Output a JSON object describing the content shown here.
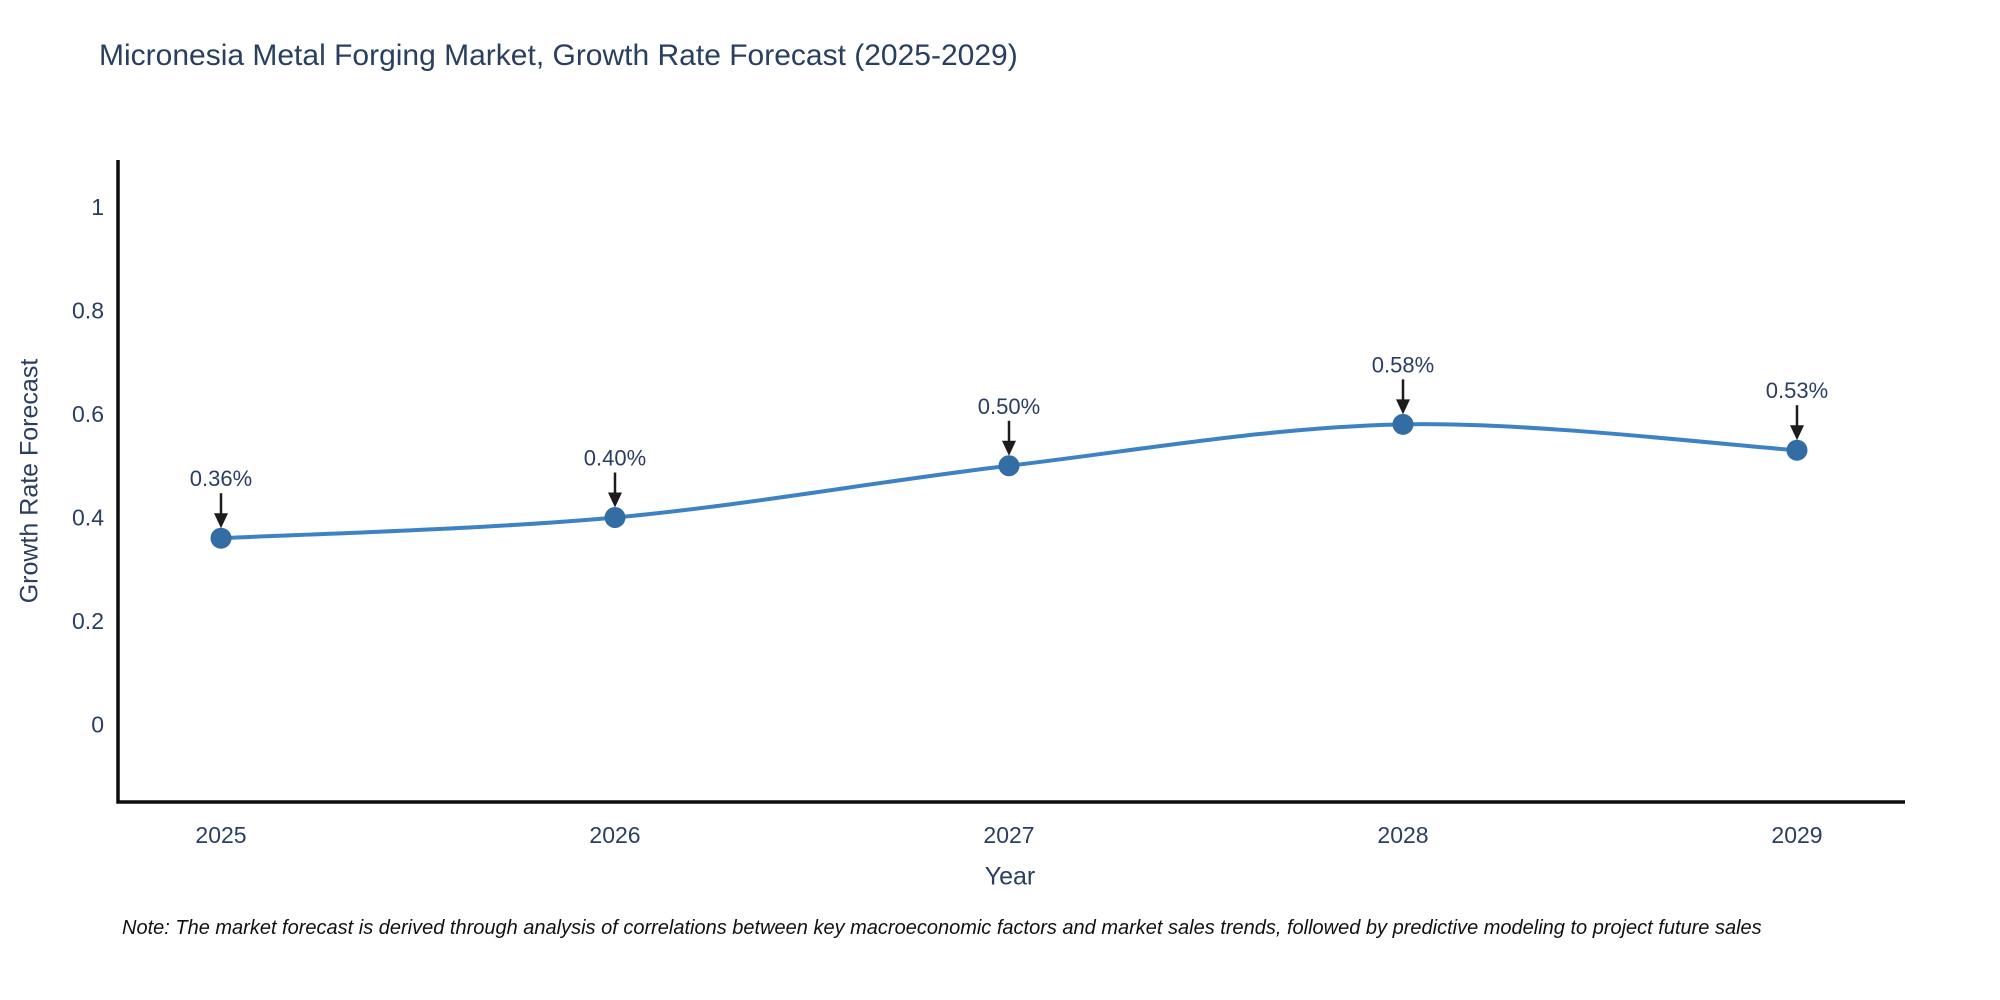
{
  "chart_data": {
    "type": "line",
    "title": "Micronesia Metal Forging Market, Growth Rate Forecast (2025-2029)",
    "xlabel": "Year",
    "ylabel": "Growth Rate Forecast",
    "categories": [
      "2025",
      "2026",
      "2027",
      "2028",
      "2029"
    ],
    "series": [
      {
        "name": "Growth Rate Forecast",
        "values": [
          0.36,
          0.4,
          0.5,
          0.58,
          0.53
        ],
        "point_labels": [
          "0.36%",
          "0.40%",
          "0.50%",
          "0.58%",
          "0.53%"
        ]
      }
    ],
    "y_ticks": [
      0,
      0.2,
      0.4,
      0.6,
      0.8,
      1
    ],
    "y_tick_labels": [
      "0",
      "0.2",
      "0.4",
      "0.6",
      "0.8",
      "1"
    ],
    "ylim": [
      -0.15,
      1.09
    ],
    "grid": false,
    "legend_position": "none",
    "line_shape": "spline",
    "annotations_have_arrows": true,
    "colors": {
      "line": "#3d82c4",
      "marker": "#346ca4",
      "axis_line": "#0d0d0d",
      "text": "#2a3f5f",
      "arrow": "#1c1c1c",
      "background": "#ffffff"
    },
    "note": "Note: The market forecast is derived through analysis of correlations between key macroeconomic factors and market sales trends, followed by predictive modeling to project future sales"
  }
}
